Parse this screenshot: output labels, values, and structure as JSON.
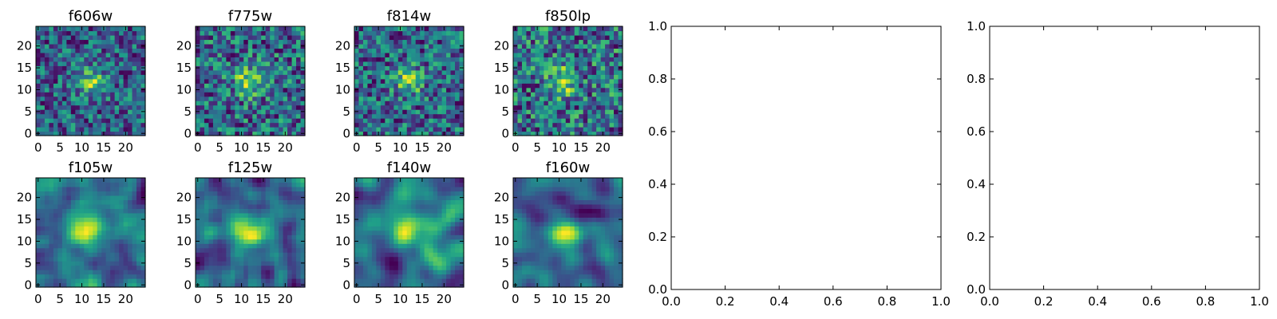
{
  "chart_data": [
    {
      "type": "heatmap",
      "title": "f606w",
      "xticks": [
        "0",
        "5",
        "10",
        "15",
        "20"
      ],
      "yticks": [
        "0",
        "5",
        "10",
        "15",
        "20"
      ],
      "xlim": [
        -0.5,
        24.5
      ],
      "ylim": [
        -0.5,
        24.5
      ],
      "grid_size": 25,
      "colormap": "viridis",
      "seed": 11,
      "peak": {
        "x": 12,
        "y": 12,
        "sigma": 2.4,
        "amp": 0.55
      }
    },
    {
      "type": "heatmap",
      "title": "f775w",
      "xticks": [
        "0",
        "5",
        "10",
        "15",
        "20"
      ],
      "yticks": [
        "0",
        "5",
        "10",
        "15",
        "20"
      ],
      "xlim": [
        -0.5,
        24.5
      ],
      "ylim": [
        -0.5,
        24.5
      ],
      "grid_size": 25,
      "colormap": "viridis",
      "seed": 23,
      "peak": {
        "x": 12,
        "y": 12,
        "sigma": 2.4,
        "amp": 0.55
      }
    },
    {
      "type": "heatmap",
      "title": "f814w",
      "xticks": [
        "0",
        "5",
        "10",
        "15",
        "20"
      ],
      "yticks": [
        "0",
        "5",
        "10",
        "15",
        "20"
      ],
      "xlim": [
        -0.5,
        24.5
      ],
      "ylim": [
        -0.5,
        24.5
      ],
      "grid_size": 25,
      "colormap": "viridis",
      "seed": 37,
      "peak": {
        "x": 12,
        "y": 12,
        "sigma": 2.2,
        "amp": 0.55
      }
    },
    {
      "type": "heatmap",
      "title": "f850lp",
      "xticks": [
        "0",
        "5",
        "10",
        "15",
        "20"
      ],
      "yticks": [
        "0",
        "5",
        "10",
        "15",
        "20"
      ],
      "xlim": [
        -0.5,
        24.5
      ],
      "ylim": [
        -0.5,
        24.5
      ],
      "grid_size": 25,
      "colormap": "viridis",
      "seed": 41,
      "peak": {
        "x": 11,
        "y": 12,
        "sigma": 2.2,
        "amp": 0.5
      }
    },
    {
      "type": "heatmap",
      "title": "f105w",
      "xticks": [
        "0",
        "5",
        "10",
        "15",
        "20"
      ],
      "yticks": [
        "0",
        "5",
        "10",
        "15",
        "20"
      ],
      "xlim": [
        -0.5,
        24.5
      ],
      "ylim": [
        -0.5,
        24.5
      ],
      "grid_size": 25,
      "colormap": "viridis",
      "seed": 53,
      "smooth": 2,
      "peak": {
        "x": 11,
        "y": 13,
        "sigma": 3.0,
        "amp": 0.55
      }
    },
    {
      "type": "heatmap",
      "title": "f125w",
      "xticks": [
        "0",
        "5",
        "10",
        "15",
        "20"
      ],
      "yticks": [
        "0",
        "5",
        "10",
        "15",
        "20"
      ],
      "xlim": [
        -0.5,
        24.5
      ],
      "ylim": [
        -0.5,
        24.5
      ],
      "grid_size": 25,
      "colormap": "viridis",
      "seed": 67,
      "smooth": 2,
      "peak": {
        "x": 12,
        "y": 13,
        "sigma": 2.6,
        "amp": 0.65
      }
    },
    {
      "type": "heatmap",
      "title": "f140w",
      "xticks": [
        "0",
        "5",
        "10",
        "15",
        "20"
      ],
      "yticks": [
        "0",
        "5",
        "10",
        "15",
        "20"
      ],
      "xlim": [
        -0.5,
        24.5
      ],
      "ylim": [
        -0.5,
        24.5
      ],
      "grid_size": 25,
      "colormap": "viridis",
      "seed": 79,
      "smooth": 3,
      "peak": {
        "x": 12,
        "y": 13,
        "sigma": 2.6,
        "amp": 0.7
      }
    },
    {
      "type": "heatmap",
      "title": "f160w",
      "xticks": [
        "0",
        "5",
        "10",
        "15",
        "20"
      ],
      "yticks": [
        "0",
        "5",
        "10",
        "15",
        "20"
      ],
      "xlim": [
        -0.5,
        24.5
      ],
      "ylim": [
        -0.5,
        24.5
      ],
      "grid_size": 25,
      "colormap": "viridis",
      "seed": 97,
      "smooth": 3,
      "peak": {
        "x": 12,
        "y": 12,
        "sigma": 2.2,
        "amp": 0.85
      }
    },
    {
      "type": "scatter",
      "title": "",
      "xlim": [
        0,
        1
      ],
      "ylim": [
        0,
        1
      ],
      "xticks": [
        "0.0",
        "0.2",
        "0.4",
        "0.6",
        "0.8",
        "1.0"
      ],
      "yticks": [
        "0.0",
        "0.2",
        "0.4",
        "0.6",
        "0.8",
        "1.0"
      ],
      "series": []
    },
    {
      "type": "scatter",
      "title": "",
      "xlim": [
        0,
        1
      ],
      "ylim": [
        0,
        1
      ],
      "xticks": [
        "0.0",
        "0.2",
        "0.4",
        "0.6",
        "0.8",
        "1.0"
      ],
      "yticks": [
        "0.0",
        "0.2",
        "0.4",
        "0.6",
        "0.8",
        "1.0"
      ],
      "series": []
    }
  ]
}
